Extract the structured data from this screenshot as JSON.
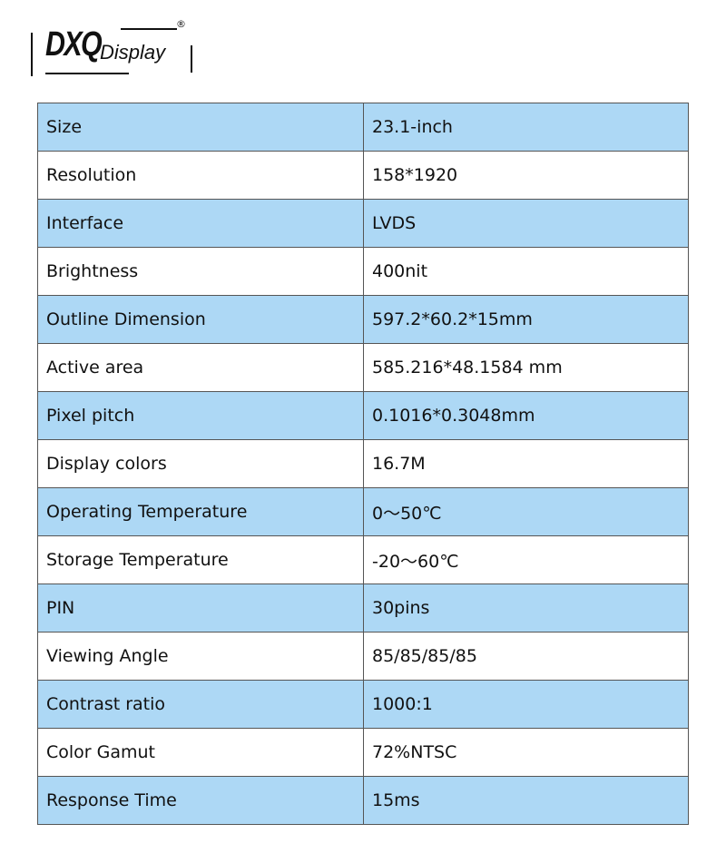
{
  "logo": {
    "brand": "DXQ",
    "sub": "Display",
    "mark": "®"
  },
  "specs": [
    {
      "label": "Size",
      "value": "23.1-inch"
    },
    {
      "label": "Resolution",
      "value": "158*1920"
    },
    {
      "label": "Interface",
      "value": "LVDS"
    },
    {
      "label": "Brightness",
      "value": "400nit"
    },
    {
      "label": "Outline Dimension",
      "value": "597.2*60.2*15mm"
    },
    {
      "label": "Active area",
      "value": "585.216*48.1584 mm"
    },
    {
      "label": "Pixel pitch",
      "value": "0.1016*0.3048mm"
    },
    {
      "label": "Display colors",
      "value": "16.7M"
    },
    {
      "label": "Operating Temperature",
      "value": "0～50℃"
    },
    {
      "label": "Storage Temperature",
      "value": "-20～60℃"
    },
    {
      "label": "PIN",
      "value": "30pins"
    },
    {
      "label": "Viewing Angle",
      "value": "85/85/85/85"
    },
    {
      "label": "Contrast ratio",
      "value": "1000:1"
    },
    {
      "label": "Color Gamut",
      "value": "72%NTSC"
    },
    {
      "label": "Response Time",
      "value": "15ms"
    }
  ],
  "colors": {
    "row_alt": "#add8f5",
    "border": "#555555"
  }
}
